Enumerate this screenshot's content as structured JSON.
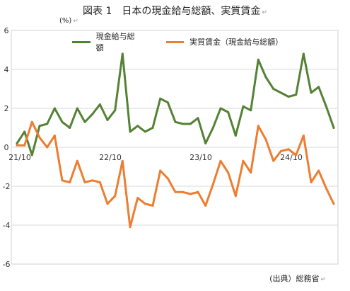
{
  "title": "図表 1　日本の現金給与総額、実質賃金",
  "unit_label": "(%)",
  "source": "(出典）総務省",
  "chart_data": {
    "type": "line",
    "title": "図表 1　日本の現金給与総額、実質賃金",
    "ylabel": "(%)",
    "ylim": [
      -6,
      6
    ],
    "yticks": [
      -6,
      -4,
      -2,
      0,
      2,
      4,
      6
    ],
    "x_tick_labels": [
      {
        "label": "21/10",
        "index": 0
      },
      {
        "label": "22/10",
        "index": 12
      },
      {
        "label": "23/10",
        "index": 24
      },
      {
        "label": "24/10",
        "index": 36
      }
    ],
    "grid": true,
    "legend_position": "top-center",
    "series": [
      {
        "name": "現金給与総額",
        "color": "#548235",
        "values": [
          0.2,
          0.8,
          -0.4,
          1.1,
          1.2,
          2.0,
          1.3,
          1.0,
          2.0,
          1.3,
          1.7,
          2.2,
          1.4,
          1.9,
          4.8,
          0.8,
          1.1,
          0.8,
          1.0,
          2.5,
          2.3,
          1.3,
          1.2,
          1.2,
          1.5,
          0.2,
          1.0,
          2.0,
          1.8,
          0.6,
          2.1,
          1.9,
          4.5,
          3.6,
          3.0,
          2.8,
          2.6,
          2.7,
          4.8,
          2.8,
          3.1,
          2.1,
          1.0
        ]
      },
      {
        "name": "実質賃金（現金給与総額）",
        "color": "#ED7D31",
        "values": [
          0.1,
          0.1,
          1.3,
          0.5,
          0.0,
          0.6,
          -1.7,
          -1.8,
          -0.7,
          -1.8,
          -1.7,
          -1.8,
          -2.9,
          -2.5,
          -0.7,
          -4.1,
          -2.6,
          -2.9,
          -3.0,
          -1.2,
          -1.6,
          -2.3,
          -2.3,
          -2.4,
          -2.3,
          -3.0,
          -1.9,
          -0.7,
          -1.3,
          -2.5,
          -0.7,
          -1.3,
          1.1,
          0.4,
          -0.7,
          -0.2,
          -0.1,
          -0.4,
          0.6,
          -1.8,
          -1.2,
          -2.1,
          -2.9
        ]
      }
    ]
  }
}
